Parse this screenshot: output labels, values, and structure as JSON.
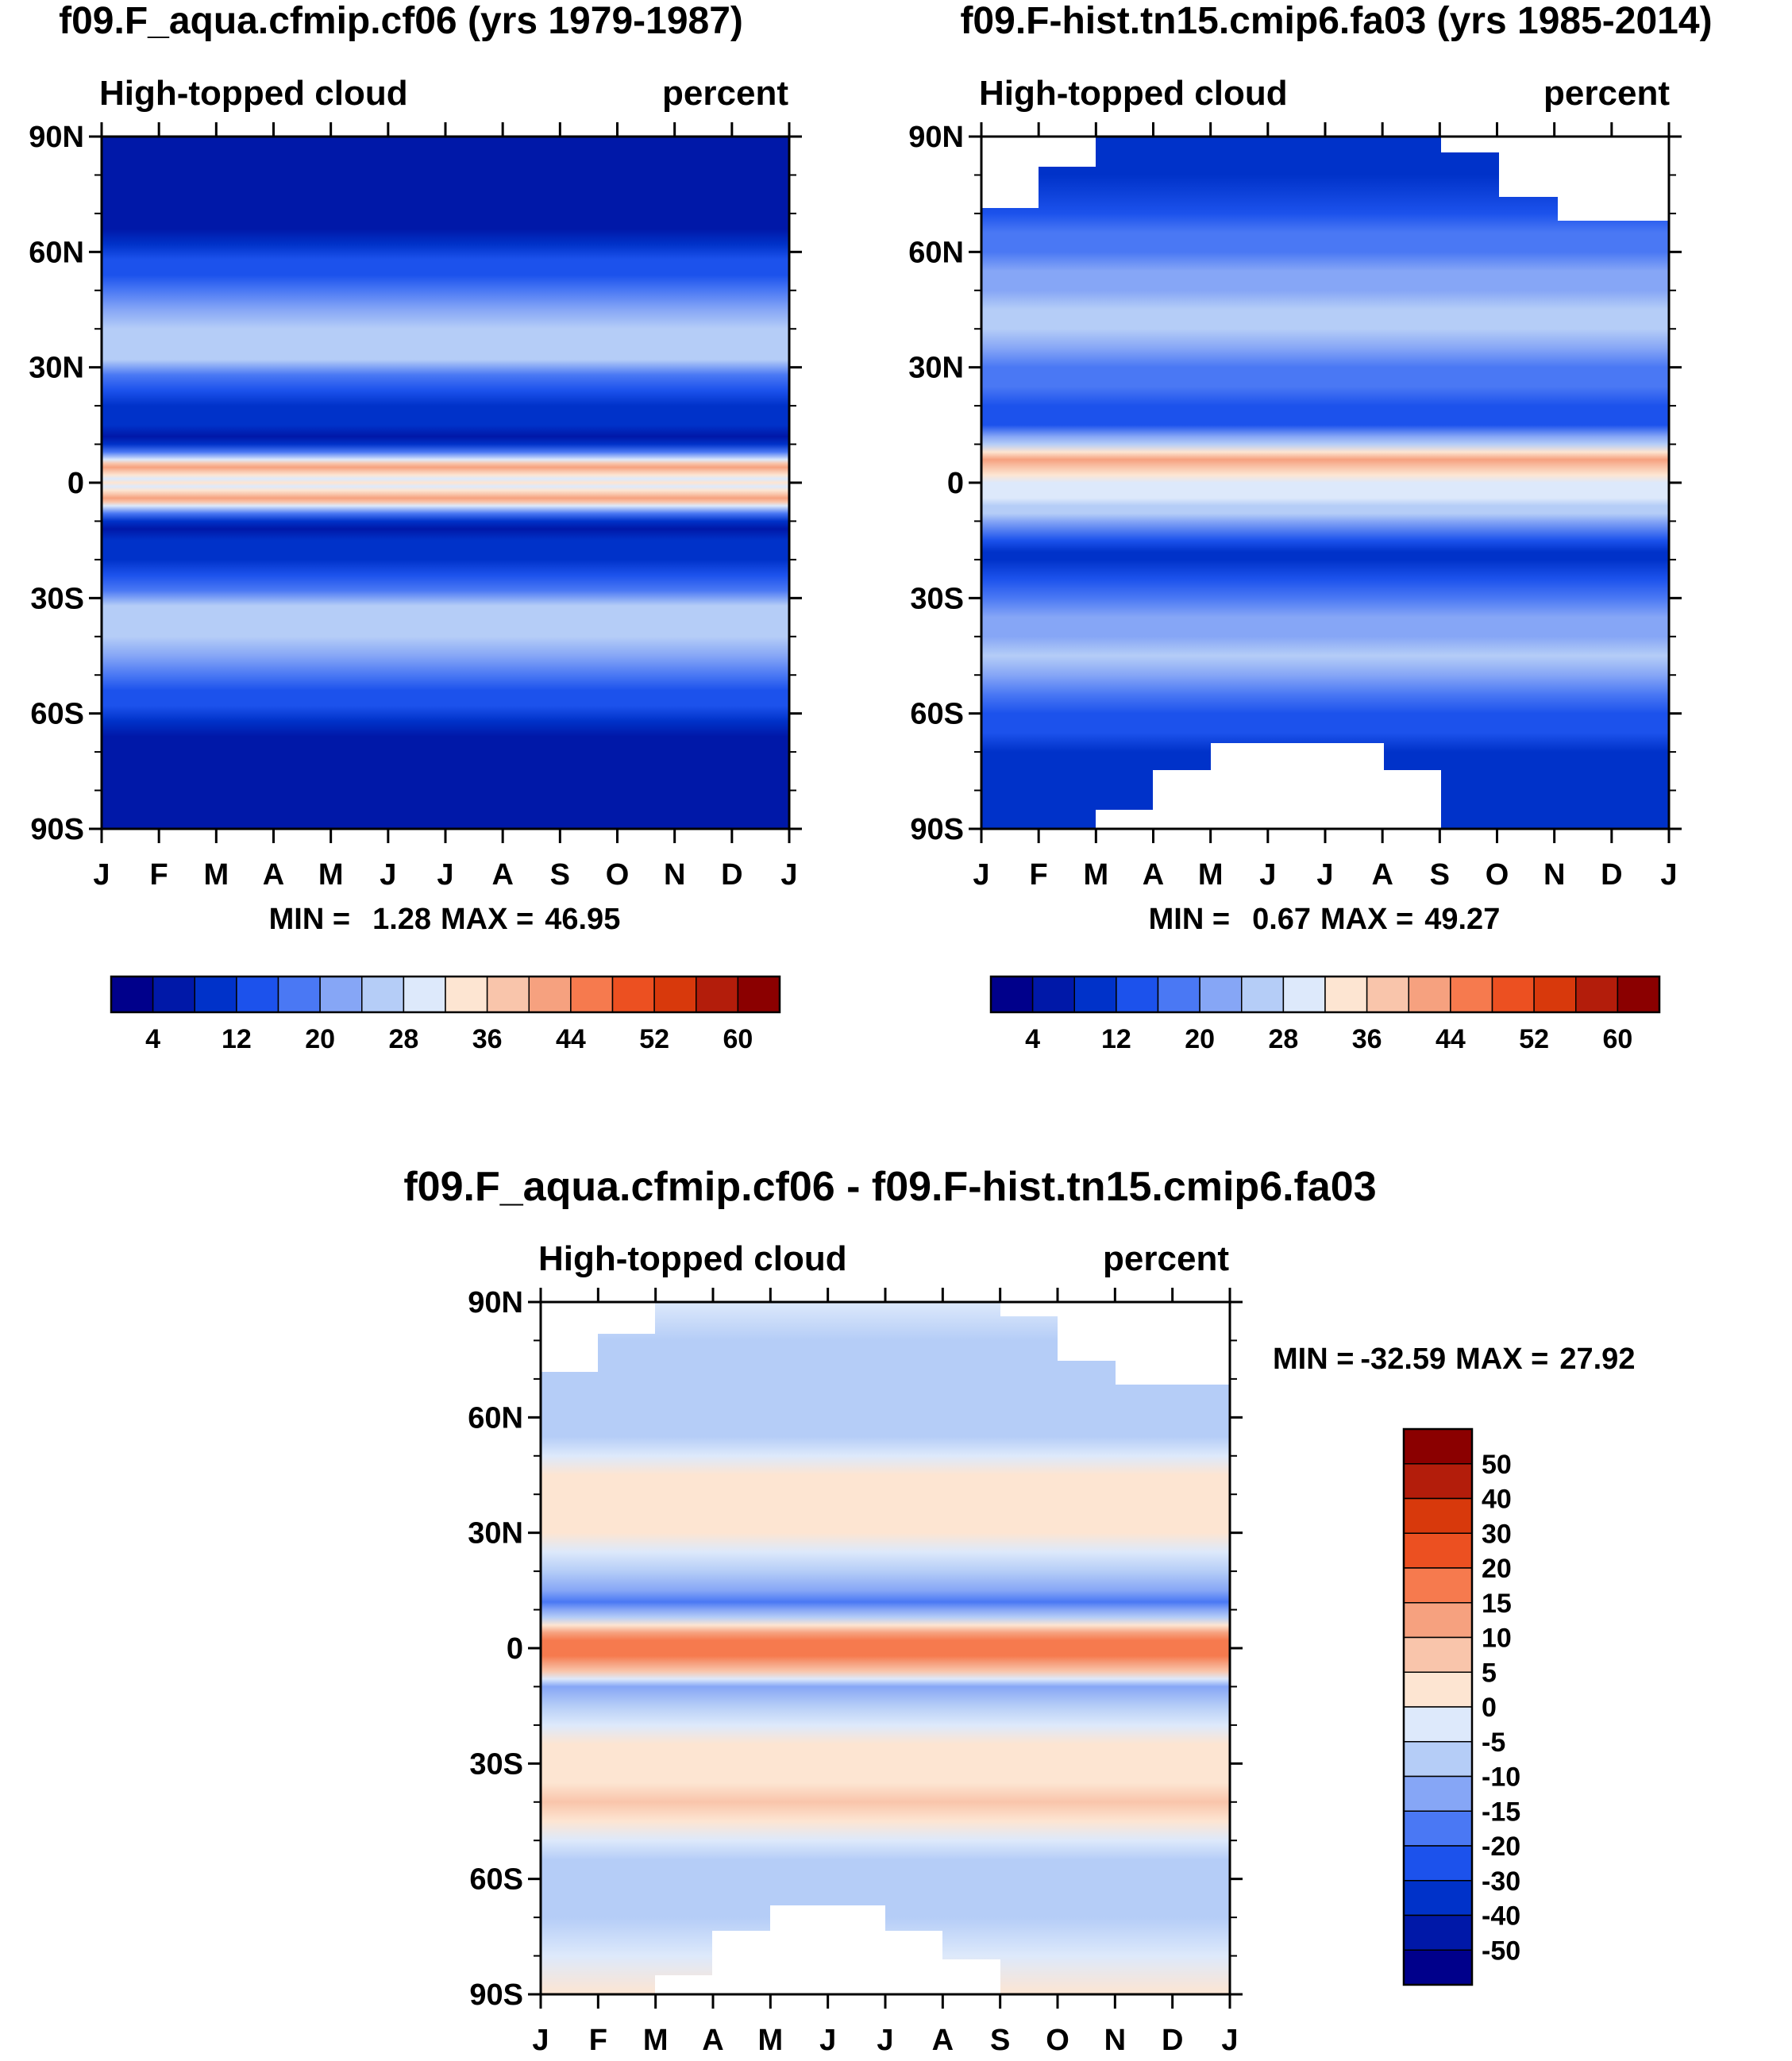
{
  "chart_data": [
    {
      "type": "heatmap",
      "title": "f09.F_aqua.cfmip.cf06 (yrs 1979-1987)",
      "left_label": "High-topped cloud",
      "right_label": "percent",
      "x_ticks": [
        "J",
        "F",
        "M",
        "A",
        "M",
        "J",
        "J",
        "A",
        "S",
        "O",
        "N",
        "D",
        "J"
      ],
      "y_ticks": [
        "90N",
        "60N",
        "30N",
        "0",
        "30S",
        "60S",
        "90S"
      ],
      "ylim": [
        -90,
        90
      ],
      "stats": {
        "min_label": "MIN =",
        "min": "1.28",
        "max_label": "MAX =",
        "max": "46.95"
      },
      "colorbar": {
        "orientation": "horizontal",
        "levels": [
          4,
          8,
          12,
          16,
          20,
          24,
          28,
          32,
          36,
          40,
          44,
          48,
          52,
          56,
          60
        ],
        "tick_labels": [
          "4",
          "12",
          "20",
          "28",
          "36",
          "44",
          "52",
          "60"
        ],
        "colors": [
          "#00008b",
          "#0018a8",
          "#0032c9",
          "#1c52ec",
          "#4a78f4",
          "#86a6f6",
          "#b5cdf7",
          "#dde9fb",
          "#fde5d2",
          "#f9c5ab",
          "#f6a17f",
          "#f67a4e",
          "#ec5021",
          "#d8390c",
          "#b31d0b",
          "#8b0000"
        ]
      },
      "zonal_profile": {
        "latitudes": [
          90,
          80,
          70,
          66,
          62,
          58,
          54,
          50,
          45,
          40,
          36,
          32,
          28,
          24,
          20,
          15,
          12,
          10,
          8,
          6,
          5,
          4,
          3,
          2,
          1,
          0,
          -1,
          -2,
          -3,
          -4,
          -5,
          -6,
          -8,
          -10,
          -12,
          -15,
          -20,
          -24,
          -28,
          -32,
          -36,
          -40,
          -45,
          -50,
          -54,
          -58,
          -62,
          -66,
          -70,
          -80,
          -90
        ],
        "percent": [
          5,
          5,
          5,
          7,
          9,
          12,
          15,
          18,
          23,
          25,
          26,
          24,
          17,
          13,
          10,
          8,
          7,
          9,
          18,
          30,
          38,
          42,
          39,
          34,
          28,
          32,
          28,
          34,
          39,
          42,
          38,
          30,
          18,
          9,
          7,
          8,
          10,
          13,
          17,
          24,
          26,
          25,
          23,
          18,
          15,
          12,
          9,
          7,
          5,
          5,
          5
        ]
      }
    },
    {
      "type": "heatmap",
      "title": "f09.F-hist.tn15.cmip6.fa03 (yrs 1985-2014)",
      "left_label": "High-topped cloud",
      "right_label": "percent",
      "x_ticks": [
        "J",
        "F",
        "M",
        "A",
        "M",
        "J",
        "J",
        "A",
        "S",
        "O",
        "N",
        "D",
        "J"
      ],
      "y_ticks": [
        "90N",
        "60N",
        "30N",
        "0",
        "30S",
        "60S",
        "90S"
      ],
      "ylim": [
        -90,
        90
      ],
      "stats": {
        "min_label": "MIN =",
        "min": "0.67",
        "max_label": "MAX =",
        "max": "49.27"
      },
      "colorbar": {
        "orientation": "horizontal",
        "levels": [
          4,
          8,
          12,
          16,
          20,
          24,
          28,
          32,
          36,
          40,
          44,
          48,
          52,
          56,
          60
        ],
        "tick_labels": [
          "4",
          "12",
          "20",
          "28",
          "36",
          "44",
          "52",
          "60"
        ],
        "colors": [
          "#00008b",
          "#0018a8",
          "#0032c9",
          "#1c52ec",
          "#4a78f4",
          "#86a6f6",
          "#b5cdf7",
          "#dde9fb",
          "#fde5d2",
          "#f9c5ab",
          "#f6a17f",
          "#f67a4e",
          "#ec5021",
          "#d8390c",
          "#b31d0b",
          "#8b0000"
        ]
      },
      "zonal_profile": {
        "latitudes": [
          90,
          80,
          70,
          65,
          60,
          55,
          50,
          45,
          40,
          35,
          30,
          25,
          20,
          18,
          15,
          12,
          10,
          8,
          6,
          4,
          2,
          0,
          -2,
          -4,
          -6,
          -8,
          -10,
          -15,
          -18,
          -20,
          -25,
          -30,
          -35,
          -40,
          -45,
          -50,
          -55,
          -60,
          -65,
          -70,
          -80,
          -90
        ],
        "percent": [
          9,
          10,
          13,
          16,
          19,
          21,
          22,
          24,
          24,
          21,
          19,
          16,
          13,
          12,
          15,
          20,
          26,
          33,
          41,
          38,
          32,
          30,
          31,
          30,
          27,
          24,
          20,
          12,
          8,
          10,
          14,
          18,
          20,
          23,
          24,
          20,
          17,
          14,
          12,
          10,
          9,
          9
        ]
      },
      "missing_data": "white regions near the poles (80N-90N and 60S-90S in parts of the year)"
    },
    {
      "type": "heatmap",
      "title": "f09.F_aqua.cfmip.cf06 - f09.F-hist.tn15.cmip6.fa03",
      "left_label": "High-topped cloud",
      "right_label": "percent",
      "x_ticks": [
        "J",
        "F",
        "M",
        "A",
        "M",
        "J",
        "J",
        "A",
        "S",
        "O",
        "N",
        "D",
        "J"
      ],
      "y_ticks": [
        "90N",
        "60N",
        "30N",
        "0",
        "30S",
        "60S",
        "90S"
      ],
      "ylim": [
        -90,
        90
      ],
      "stats": {
        "min_label": "MIN =",
        "min": "-32.59",
        "max_label": "MAX =",
        "max": "27.92"
      },
      "colorbar": {
        "orientation": "vertical",
        "levels": [
          -50,
          -40,
          -30,
          -20,
          -15,
          -10,
          -5,
          0,
          5,
          10,
          15,
          20,
          30,
          40,
          50
        ],
        "tick_labels": [
          "50",
          "40",
          "30",
          "20",
          "15",
          "10",
          "5",
          "0",
          "-5",
          "-10",
          "-15",
          "-20",
          "-30",
          "-40",
          "-50"
        ],
        "colors": [
          "#00008b",
          "#0018a8",
          "#0032c9",
          "#1c52ec",
          "#4a78f4",
          "#86a6f6",
          "#b5cdf7",
          "#dde9fb",
          "#fde5d2",
          "#f9c5ab",
          "#f6a17f",
          "#f67a4e",
          "#ec5021",
          "#d8390c",
          "#b31d0b",
          "#8b0000"
        ]
      },
      "zonal_profile": {
        "latitudes": [
          90,
          80,
          70,
          65,
          60,
          55,
          50,
          45,
          40,
          35,
          30,
          25,
          20,
          15,
          12,
          10,
          8,
          6,
          4,
          2,
          0,
          -2,
          -4,
          -6,
          -8,
          -10,
          -15,
          -20,
          -25,
          -30,
          -35,
          -40,
          -45,
          -50,
          -55,
          -60,
          -65,
          -70,
          -80,
          -90
        ],
        "percent": [
          -4,
          -6,
          -8,
          -10,
          -10,
          -6,
          -2,
          3,
          3,
          1,
          0,
          -5,
          -10,
          -14,
          -18,
          -15,
          -8,
          4,
          12,
          16,
          18,
          16,
          12,
          5,
          -4,
          -12,
          -10,
          -4,
          0,
          2,
          4,
          5,
          2,
          -2,
          -8,
          -10,
          -9,
          -6,
          -3,
          0
        ]
      },
      "missing_data": "white regions near the poles"
    }
  ]
}
